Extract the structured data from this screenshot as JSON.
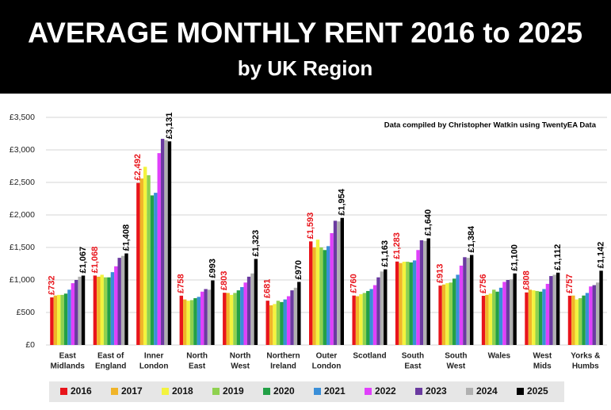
{
  "chart_data": {
    "type": "bar",
    "title": "AVERAGE MONTHLY RENT 2016 to 2025",
    "subtitle": "by UK Region",
    "annotation": "Data compiled by Christopher Watkin using TwentyEA Data",
    "categories": [
      [
        "East",
        "Midlands"
      ],
      [
        "East of",
        "England"
      ],
      [
        "Inner",
        "London"
      ],
      [
        "North",
        "East"
      ],
      [
        "North",
        "West"
      ],
      [
        "Northern",
        "Ireland"
      ],
      [
        "Outer",
        "London"
      ],
      [
        "Scotland"
      ],
      [
        "South",
        "East"
      ],
      [
        "South",
        "West"
      ],
      [
        "Wales"
      ],
      [
        "West",
        "Mids"
      ],
      [
        "Yorks &",
        "Humbs"
      ]
    ],
    "ylim": [
      0,
      3500
    ],
    "yticks": [
      {
        "value": 0,
        "label": "£0"
      },
      {
        "value": 500,
        "label": "£500"
      },
      {
        "value": 1000,
        "label": "£1,000"
      },
      {
        "value": 1500,
        "label": "£1,500"
      },
      {
        "value": 2000,
        "label": "£2,000"
      },
      {
        "value": 2500,
        "label": "£2,500"
      },
      {
        "value": 3000,
        "label": "£3,000"
      },
      {
        "value": 3500,
        "label": "£3,500"
      }
    ],
    "grid": true,
    "legend": "bottom",
    "series": [
      {
        "name": "2016",
        "color": "#e8141b",
        "values": [
          732,
          1068,
          2492,
          758,
          803,
          681,
          1593,
          760,
          1283,
          913,
          756,
          808,
          757
        ],
        "value_labels": [
          "£732",
          "£1,068",
          "£2,492",
          "£758",
          "£803",
          "£681",
          "£1,593",
          "£760",
          "£1,283",
          "£913",
          "£756",
          "£808",
          "£757"
        ]
      },
      {
        "name": "2017",
        "color": "#f0b429",
        "values": [
          760,
          1050,
          2560,
          700,
          800,
          610,
          1500,
          750,
          1260,
          930,
          770,
          850,
          760
        ]
      },
      {
        "name": "2018",
        "color": "#f3f33e",
        "values": [
          770,
          1080,
          2740,
          680,
          770,
          630,
          1620,
          780,
          1280,
          950,
          790,
          840,
          700
        ]
      },
      {
        "name": "2019",
        "color": "#8fd14f",
        "values": [
          770,
          1040,
          2610,
          690,
          800,
          680,
          1500,
          800,
          1280,
          960,
          850,
          830,
          720
        ]
      },
      {
        "name": "2020",
        "color": "#22a046",
        "values": [
          790,
          1040,
          2300,
          720,
          840,
          660,
          1460,
          830,
          1270,
          1020,
          820,
          820,
          760
        ]
      },
      {
        "name": "2021",
        "color": "#3a8fd8",
        "values": [
          850,
          1120,
          2340,
          740,
          890,
          700,
          1520,
          860,
          1300,
          1080,
          880,
          860,
          800
        ]
      },
      {
        "name": "2022",
        "color": "#e040fb",
        "values": [
          950,
          1210,
          2950,
          820,
          960,
          750,
          1720,
          920,
          1460,
          1220,
          970,
          940,
          900
        ]
      },
      {
        "name": "2023",
        "color": "#6a3aa0",
        "values": [
          1000,
          1340,
          3170,
          860,
          1050,
          840,
          1910,
          1040,
          1610,
          1350,
          1000,
          1060,
          920
        ]
      },
      {
        "name": "2024",
        "color": "#b0b0b0",
        "values": [
          1050,
          1370,
          3150,
          850,
          1100,
          880,
          1900,
          1130,
          1600,
          1340,
          1010,
          1080,
          960
        ]
      },
      {
        "name": "2025",
        "color": "#000000",
        "values": [
          1067,
          1408,
          3131,
          993,
          1323,
          970,
          1954,
          1163,
          1640,
          1384,
          1100,
          1112,
          1142
        ],
        "value_labels": [
          "£1,067",
          "£1,408",
          "£3,131",
          "£993",
          "£1,323",
          "£970",
          "£1,954",
          "£1,163",
          "£1,640",
          "£1,384",
          "£1,100",
          "£1,112",
          "£1,142"
        ]
      }
    ]
  }
}
